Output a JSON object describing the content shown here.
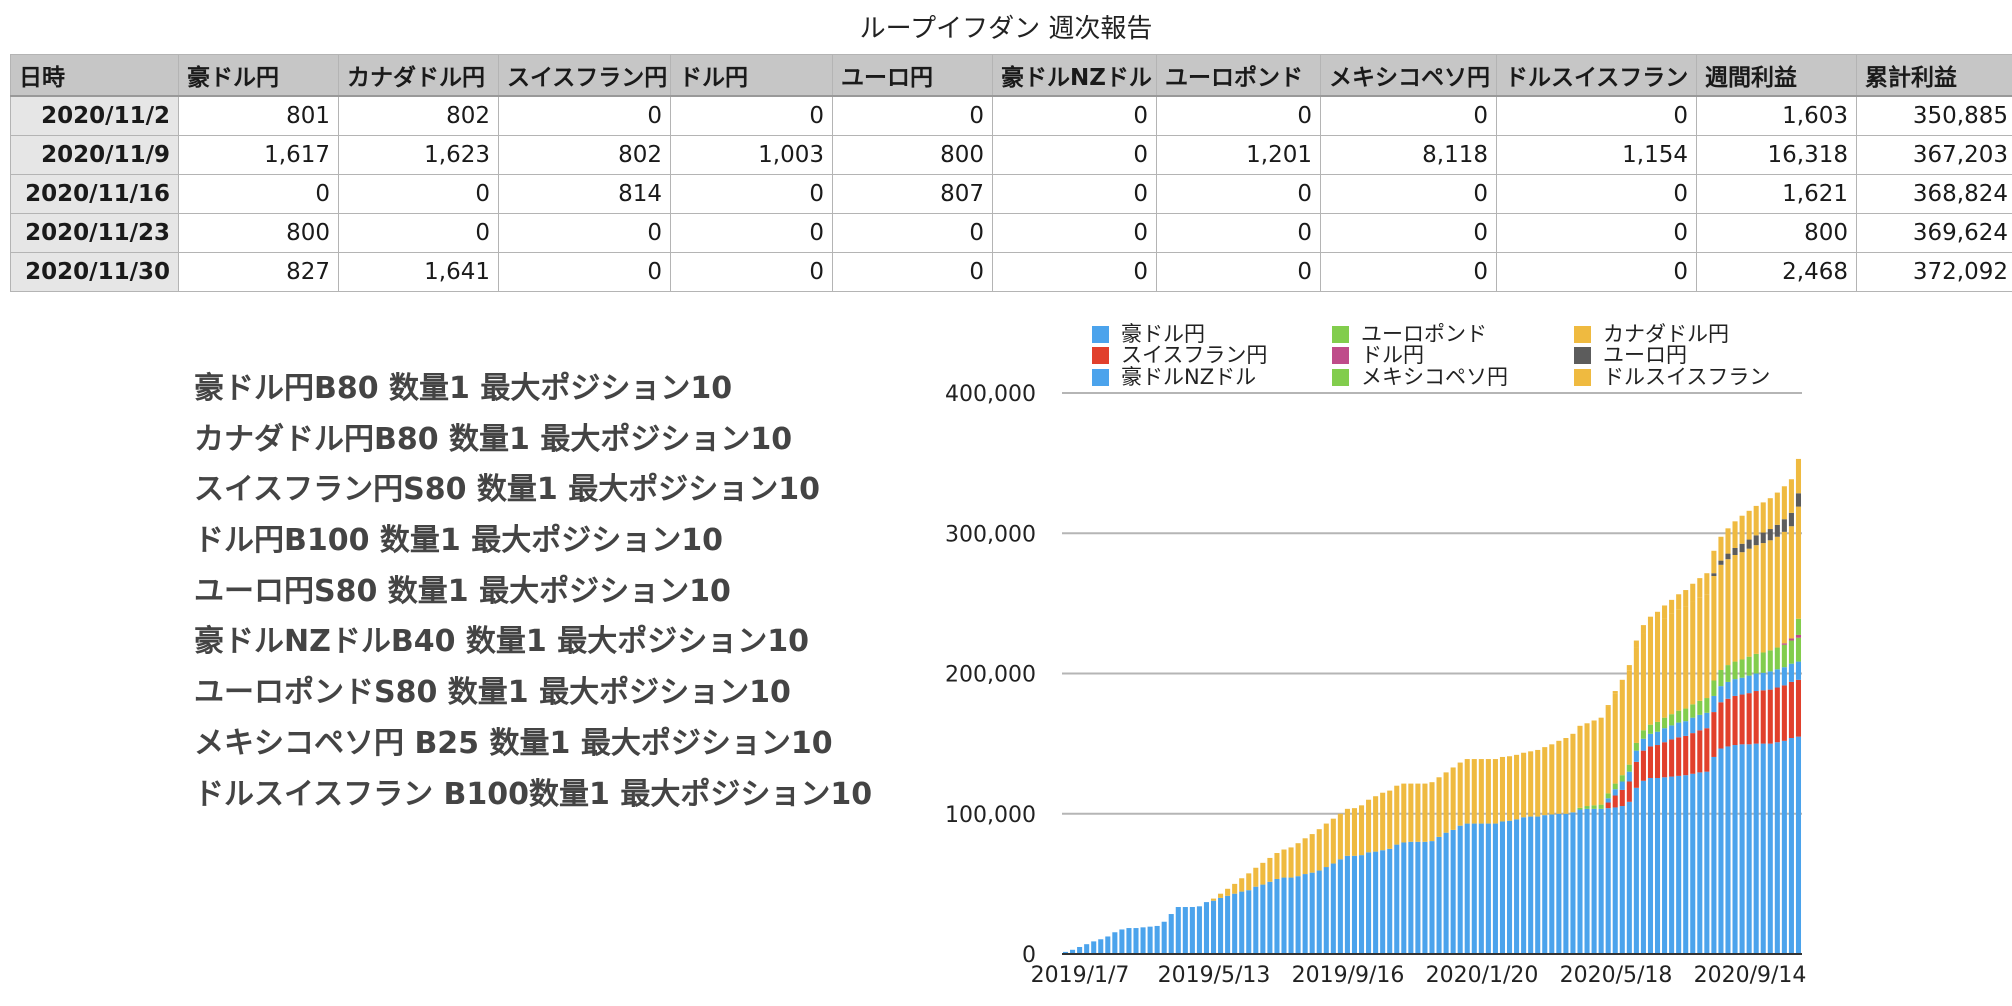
{
  "report": {
    "title": "ループイフダン 週次報告",
    "columns": [
      "日時",
      "豪ドル円",
      "カナダドル円",
      "スイスフラン円",
      "ドル円",
      "ユーロ円",
      "豪ドルNZドル",
      "ユーロポンド",
      "メキシコペソ円",
      "ドルスイスフラン",
      "週間利益",
      "累計利益"
    ],
    "rows": [
      [
        "2020/11/2",
        "801",
        "802",
        "0",
        "0",
        "0",
        "0",
        "0",
        "0",
        "0",
        "1,603",
        "350,885"
      ],
      [
        "2020/11/9",
        "1,617",
        "1,623",
        "802",
        "1,003",
        "800",
        "0",
        "1,201",
        "8,118",
        "1,154",
        "16,318",
        "367,203"
      ],
      [
        "2020/11/16",
        "0",
        "0",
        "814",
        "0",
        "807",
        "0",
        "0",
        "0",
        "0",
        "1,621",
        "368,824"
      ],
      [
        "2020/11/23",
        "800",
        "0",
        "0",
        "0",
        "0",
        "0",
        "0",
        "0",
        "0",
        "800",
        "369,624"
      ],
      [
        "2020/11/30",
        "827",
        "1,641",
        "0",
        "0",
        "0",
        "0",
        "0",
        "0",
        "0",
        "2,468",
        "372,092"
      ]
    ]
  },
  "strategies": [
    "豪ドル円B80 数量1 最大ポジション10",
    "カナダドル円B80 数量1 最大ポジション10",
    "スイスフラン円S80 数量1 最大ポジション10",
    "ドル円B100 数量1 最大ポジション10",
    "ユーロ円S80 数量1 最大ポジション10",
    "豪ドルNZドルB40 数量1 最大ポジション10",
    "ユーロポンドS80 数量1 最大ポジション10",
    "メキシコペソ円 B25 数量1 最大ポジション10",
    "ドルスイスフラン B100数量1 最大ポジション10"
  ],
  "chart_data": {
    "type": "bar",
    "stacked": true,
    "ylim": [
      0,
      400000
    ],
    "yticks": [
      "0",
      "100,000",
      "200,000",
      "300,000",
      "400,000"
    ],
    "xtick_labels": [
      "2019/1/7",
      "2019/5/13",
      "2019/9/16",
      "2020/1/20",
      "2020/5/18",
      "2020/9/14"
    ],
    "grid": true,
    "legend_position": "top",
    "series": [
      {
        "name": "豪ドル円",
        "color": "#4ba3ec",
        "values": [
          1500,
          3000,
          5000,
          7000,
          9000,
          10500,
          12500,
          15500,
          17500,
          18500,
          18500,
          19000,
          19500,
          20000,
          23000,
          28500,
          33500,
          33500,
          33500,
          34000,
          37000,
          38000,
          40000,
          41500,
          43000,
          44500,
          45500,
          48000,
          49500,
          51500,
          53500,
          54500,
          54500,
          55500,
          57000,
          58000,
          59500,
          62000,
          64500,
          67500,
          70000,
          70000,
          70500,
          72500,
          73000,
          74000,
          75000,
          78000,
          79500,
          80000,
          80000,
          80000,
          80500,
          83500,
          86500,
          88500,
          91500,
          93000,
          93000,
          93000,
          93000,
          93000,
          94500,
          95000,
          96000,
          97500,
          98000,
          98000,
          99000,
          99500,
          100000,
          100000,
          101000,
          103000,
          103500,
          103500,
          103500,
          104000,
          104500,
          105500,
          108500,
          118500,
          123500,
          125500,
          125500,
          126000,
          126500,
          127000,
          127500,
          128500,
          129500,
          130000,
          140500,
          146500,
          148000,
          149000,
          149500,
          149500,
          150000,
          150000,
          150000,
          151000,
          152000,
          154000,
          155000
        ]
      },
      {
        "name": "スイスフラン円",
        "color": "#e1402c",
        "values": [
          0,
          0,
          0,
          0,
          0,
          0,
          0,
          0,
          0,
          0,
          0,
          0,
          0,
          0,
          0,
          0,
          0,
          0,
          0,
          0,
          0,
          0,
          0,
          0,
          0,
          0,
          0,
          0,
          0,
          0,
          0,
          0,
          0,
          0,
          0,
          0,
          0,
          0,
          0,
          0,
          0,
          0,
          0,
          0,
          0,
          0,
          0,
          0,
          0,
          0,
          0,
          0,
          0,
          0,
          0,
          0,
          0,
          0,
          0,
          0,
          0,
          0,
          0,
          0,
          0,
          0,
          0,
          0,
          0,
          0,
          0,
          0,
          0,
          0,
          0,
          0,
          0,
          4000,
          8500,
          11500,
          14500,
          18500,
          21500,
          22500,
          23500,
          25000,
          26500,
          27500,
          28000,
          29000,
          30000,
          31000,
          32000,
          33000,
          34000,
          35000,
          35500,
          36500,
          37500,
          38000,
          38500,
          39000,
          39500,
          40000,
          40500
        ]
      },
      {
        "name": "豪ドルNZドル",
        "color": "#4ba3ec",
        "values": [
          0,
          0,
          0,
          0,
          0,
          0,
          0,
          0,
          0,
          0,
          0,
          0,
          0,
          0,
          0,
          0,
          0,
          0,
          0,
          0,
          0,
          0,
          0,
          0,
          0,
          0,
          0,
          0,
          0,
          0,
          0,
          0,
          0,
          0,
          0,
          0,
          0,
          0,
          0,
          0,
          0,
          0,
          0,
          0,
          0,
          0,
          0,
          0,
          0,
          0,
          0,
          0,
          0,
          0,
          0,
          0,
          0,
          0,
          0,
          0,
          0,
          0,
          0,
          0,
          0,
          0,
          0,
          0,
          0,
          0,
          0,
          0,
          0,
          0,
          0,
          0,
          0,
          3000,
          4500,
          6000,
          7000,
          8000,
          8500,
          9000,
          9500,
          10000,
          10000,
          10500,
          10500,
          11000,
          11000,
          11000,
          11500,
          11500,
          12000,
          12000,
          12000,
          12500,
          12500,
          12500,
          13000,
          13000,
          13000,
          13000,
          13000
        ]
      },
      {
        "name": "ユーロポンド",
        "color": "#82cd4d",
        "values": [
          0,
          0,
          0,
          0,
          0,
          0,
          0,
          0,
          0,
          0,
          0,
          0,
          0,
          0,
          0,
          0,
          0,
          0,
          0,
          0,
          0,
          0,
          0,
          0,
          0,
          0,
          0,
          0,
          0,
          0,
          0,
          0,
          0,
          0,
          0,
          0,
          0,
          0,
          0,
          0,
          0,
          0,
          0,
          0,
          0,
          0,
          0,
          0,
          0,
          0,
          0,
          0,
          0,
          0,
          0,
          0,
          0,
          0,
          0,
          0,
          0,
          0,
          0,
          0,
          0,
          0,
          0,
          0,
          0,
          0,
          0,
          0,
          0,
          1200,
          2000,
          2500,
          3000,
          3500,
          4000,
          4500,
          5000,
          5500,
          6000,
          6500,
          7000,
          7500,
          8000,
          8500,
          9000,
          9500,
          10000,
          10500,
          11000,
          11500,
          12000,
          12500,
          13000,
          13500,
          14000,
          14500,
          15000,
          15500,
          16000,
          16500,
          17000
        ]
      },
      {
        "name": "ドル円",
        "color": "#bf4c8a",
        "values": [
          0,
          0,
          0,
          0,
          0,
          0,
          0,
          0,
          0,
          0,
          0,
          0,
          0,
          0,
          0,
          0,
          0,
          0,
          0,
          0,
          0,
          0,
          0,
          0,
          0,
          0,
          0,
          0,
          0,
          0,
          0,
          0,
          0,
          0,
          0,
          0,
          0,
          0,
          0,
          0,
          0,
          0,
          0,
          0,
          0,
          0,
          0,
          0,
          0,
          0,
          0,
          0,
          0,
          0,
          0,
          0,
          0,
          0,
          0,
          0,
          0,
          0,
          0,
          0,
          0,
          0,
          0,
          0,
          0,
          0,
          0,
          0,
          0,
          0,
          0,
          0,
          0,
          0,
          0,
          0,
          0,
          0,
          0,
          0,
          0,
          0,
          0,
          0,
          0,
          0,
          0,
          0,
          0,
          0,
          0,
          0,
          0,
          0,
          0,
          0,
          0,
          0,
          1000,
          1500,
          2000
        ]
      },
      {
        "name": "メキシコペソ円",
        "color": "#82cd4d",
        "values": [
          0,
          0,
          0,
          0,
          0,
          0,
          0,
          0,
          0,
          0,
          0,
          0,
          0,
          0,
          0,
          0,
          0,
          0,
          0,
          0,
          0,
          0,
          0,
          0,
          0,
          0,
          0,
          0,
          0,
          0,
          0,
          0,
          0,
          0,
          0,
          0,
          0,
          0,
          0,
          0,
          0,
          0,
          0,
          0,
          0,
          0,
          0,
          0,
          0,
          0,
          0,
          0,
          0,
          0,
          0,
          0,
          0,
          0,
          0,
          0,
          0,
          0,
          0,
          0,
          0,
          0,
          0,
          0,
          0,
          0,
          0,
          0,
          0,
          0,
          0,
          0,
          0,
          0,
          0,
          0,
          0,
          0,
          0,
          0,
          0,
          0,
          0,
          0,
          0,
          0,
          0,
          0,
          0,
          0,
          0,
          0,
          0,
          0,
          0,
          0,
          0,
          0,
          0,
          0,
          11500
        ]
      },
      {
        "name": "カナダドル円",
        "color": "#efba40",
        "values": [
          0,
          0,
          0,
          0,
          0,
          0,
          0,
          0,
          0,
          0,
          0,
          0,
          0,
          0,
          0,
          0,
          0,
          0,
          0,
          0,
          0,
          1500,
          3000,
          5000,
          7000,
          9500,
          12000,
          13500,
          15500,
          17000,
          18500,
          20000,
          21500,
          23500,
          25500,
          27500,
          29500,
          31000,
          32000,
          32500,
          33500,
          34000,
          35500,
          37500,
          39500,
          41000,
          41500,
          42000,
          42000,
          41500,
          41500,
          41500,
          42000,
          42500,
          43000,
          44500,
          45000,
          46000,
          46000,
          46000,
          46000,
          46000,
          46000,
          46000,
          46000,
          46000,
          46500,
          47500,
          48500,
          50000,
          52000,
          54000,
          56000,
          58500,
          59000,
          60500,
          62000,
          62000,
          64000,
          65000,
          67000,
          68000,
          69000,
          70000,
          70500,
          71000,
          71500,
          72000,
          72500,
          73000,
          73500,
          74000,
          74500,
          75000,
          75500,
          76000,
          76500,
          77000,
          77500,
          78000,
          78500,
          79000,
          79500,
          80000,
          80000
        ]
      },
      {
        "name": "ユーロ円",
        "color": "#5c5c5c",
        "values": [
          0,
          0,
          0,
          0,
          0,
          0,
          0,
          0,
          0,
          0,
          0,
          0,
          0,
          0,
          0,
          0,
          0,
          0,
          0,
          0,
          0,
          0,
          0,
          0,
          0,
          0,
          0,
          0,
          0,
          0,
          0,
          0,
          0,
          0,
          0,
          0,
          0,
          0,
          0,
          0,
          0,
          0,
          0,
          0,
          0,
          0,
          0,
          0,
          0,
          0,
          0,
          0,
          0,
          0,
          0,
          0,
          0,
          0,
          0,
          0,
          0,
          0,
          0,
          0,
          0,
          0,
          0,
          0,
          0,
          0,
          0,
          0,
          0,
          0,
          0,
          0,
          0,
          0,
          0,
          0,
          0,
          0,
          0,
          0,
          0,
          0,
          0,
          0,
          0,
          0,
          0,
          0,
          2000,
          3000,
          4000,
          5000,
          6000,
          6500,
          7000,
          7500,
          8000,
          8500,
          9000,
          9500,
          9500
        ]
      },
      {
        "name": "ドルスイスフラン",
        "color": "#efba40",
        "values": [
          0,
          0,
          0,
          0,
          0,
          0,
          0,
          0,
          0,
          0,
          0,
          0,
          0,
          0,
          0,
          0,
          0,
          0,
          0,
          0,
          0,
          0,
          0,
          0,
          0,
          0,
          0,
          0,
          0,
          0,
          0,
          0,
          0,
          0,
          0,
          0,
          0,
          0,
          0,
          0,
          0,
          0,
          0,
          0,
          0,
          0,
          0,
          0,
          0,
          0,
          0,
          0,
          0,
          0,
          0,
          0,
          0,
          0,
          0,
          0,
          0,
          0,
          0,
          0,
          0,
          0,
          0,
          0,
          0,
          0,
          0,
          0,
          0,
          0,
          0,
          0,
          0,
          1000,
          2000,
          3000,
          4000,
          5000,
          6000,
          7000,
          8000,
          9000,
          10000,
          11000,
          12000,
          13000,
          14000,
          15000,
          16000,
          17000,
          18000,
          19000,
          20000,
          20500,
          21000,
          21500,
          22000,
          23000,
          23500,
          24000,
          24500
        ]
      }
    ]
  }
}
